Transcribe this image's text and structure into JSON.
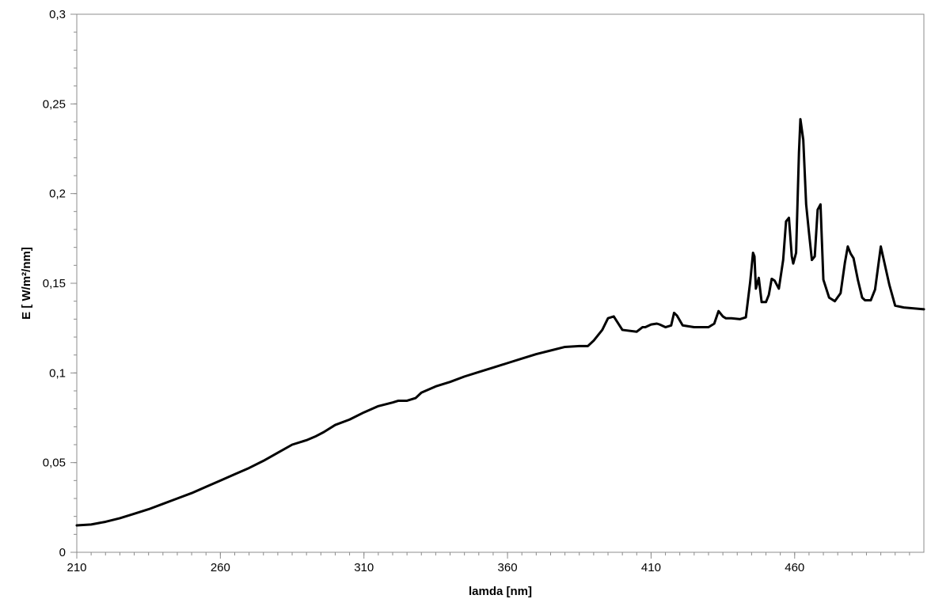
{
  "chart_data": {
    "type": "line",
    "title": "",
    "xlabel": "lamda [nm]",
    "ylabel": "E [ W/m²/nm]",
    "xlim": [
      210,
      505
    ],
    "ylim": [
      0,
      0.3
    ],
    "x_ticks": [
      210,
      260,
      310,
      360,
      410,
      460
    ],
    "x_tick_labels": [
      "210",
      "260",
      "310",
      "360",
      "410",
      "460"
    ],
    "x_minor_step": 5,
    "y_ticks": [
      0,
      0.05,
      0.1,
      0.15,
      0.2,
      0.25,
      0.3
    ],
    "y_tick_labels": [
      "0",
      "0,05",
      "0,1",
      "0,15",
      "0,2",
      "0,25",
      "0,3"
    ],
    "y_minor_step": 0.01,
    "grid": false,
    "legend": "none",
    "line_color": "#000000",
    "series": [
      {
        "x": [
          210,
          215,
          220,
          225,
          230,
          235,
          240,
          245,
          250,
          255,
          260,
          265,
          270,
          275,
          280,
          285,
          290,
          293,
          296,
          300,
          305,
          310,
          315,
          320,
          322,
          325,
          328,
          330,
          335,
          340,
          345,
          350,
          355,
          360,
          365,
          370,
          375,
          380,
          385,
          388,
          390,
          393,
          395,
          397,
          400,
          405,
          407,
          408,
          410,
          412,
          413,
          415,
          417,
          418,
          419,
          421,
          425,
          430,
          432,
          433.5,
          435,
          436,
          438,
          441,
          443,
          444.5,
          445.5,
          446,
          446.5,
          447.5,
          448.5,
          450,
          451,
          452,
          453,
          454.5,
          456,
          457,
          458,
          459,
          459.5,
          460.5,
          461.5,
          462,
          463,
          464,
          465,
          466,
          467,
          468,
          469,
          470,
          472,
          474,
          476,
          477.5,
          478.5,
          479.5,
          480.5,
          482,
          483.5,
          484.5,
          485.5,
          486.5,
          488,
          490,
          493,
          495,
          498,
          505
        ],
        "y": [
          0.015,
          0.0155,
          0.017,
          0.019,
          0.0215,
          0.024,
          0.027,
          0.03,
          0.033,
          0.0365,
          0.04,
          0.0435,
          0.047,
          0.051,
          0.0555,
          0.06,
          0.0625,
          0.0645,
          0.067,
          0.071,
          0.074,
          0.078,
          0.0815,
          0.0835,
          0.0845,
          0.0845,
          0.086,
          0.089,
          0.0925,
          0.095,
          0.098,
          0.1005,
          0.103,
          0.1055,
          0.108,
          0.1105,
          0.1125,
          0.1145,
          0.115,
          0.115,
          0.118,
          0.124,
          0.1305,
          0.1315,
          0.124,
          0.123,
          0.1255,
          0.1255,
          0.127,
          0.1275,
          0.127,
          0.1255,
          0.1265,
          0.1335,
          0.132,
          0.1265,
          0.1255,
          0.1255,
          0.1275,
          0.1345,
          0.1315,
          0.1305,
          0.1305,
          0.13,
          0.131,
          0.1505,
          0.167,
          0.165,
          0.147,
          0.153,
          0.1395,
          0.1395,
          0.1435,
          0.1525,
          0.1515,
          0.147,
          0.163,
          0.1845,
          0.1865,
          0.165,
          0.161,
          0.167,
          0.223,
          0.2415,
          0.23,
          0.194,
          0.178,
          0.163,
          0.165,
          0.191,
          0.194,
          0.152,
          0.142,
          0.14,
          0.1445,
          0.1615,
          0.1705,
          0.1665,
          0.164,
          0.152,
          0.142,
          0.1405,
          0.1405,
          0.1405,
          0.1465,
          0.1705,
          0.149,
          0.1375,
          0.1365,
          0.1355
        ]
      }
    ]
  }
}
